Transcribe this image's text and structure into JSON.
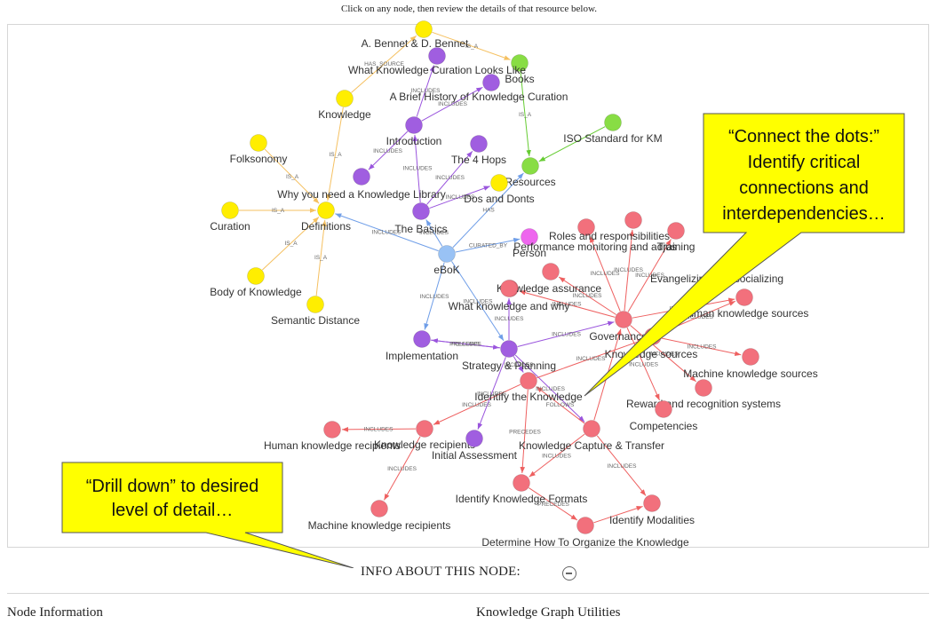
{
  "instruction": "Click on any node, then review the details of that resource below.",
  "colors": {
    "definition": "#ffee00",
    "content": "#a05ee0",
    "resource": "#88dd44",
    "governance": "#f2707c",
    "root": "#99c2f5",
    "person": "#ee66ee",
    "callout": "#ffff00"
  },
  "nodes": [
    {
      "id": "a-bennet",
      "label": "A. Bennet & D. Bennet",
      "type": "definition"
    },
    {
      "id": "books",
      "label": "Books",
      "type": "resource"
    },
    {
      "id": "what-kc-looks-like",
      "label": "What Knowledge Curation Looks Like",
      "type": "content"
    },
    {
      "id": "brief-history",
      "label": "A Brief History of Knowledge Curation",
      "type": "content"
    },
    {
      "id": "knowledge",
      "label": "Knowledge",
      "type": "definition"
    },
    {
      "id": "introduction",
      "label": "Introduction",
      "type": "content"
    },
    {
      "id": "iso-km",
      "label": "ISO Standard for KM",
      "type": "resource"
    },
    {
      "id": "folksonomy",
      "label": "Folksonomy",
      "type": "definition"
    },
    {
      "id": "the-4-hops",
      "label": "The 4 Hops",
      "type": "content"
    },
    {
      "id": "resources",
      "label": "Resources",
      "type": "resource"
    },
    {
      "id": "why-library",
      "label": "Why you need a Knowledge Library",
      "type": "content"
    },
    {
      "id": "dos-donts",
      "label": "Dos and Donts",
      "type": "definition"
    },
    {
      "id": "curation",
      "label": "Curation",
      "type": "definition"
    },
    {
      "id": "definitions",
      "label": "Definitions",
      "type": "definition"
    },
    {
      "id": "the-basics",
      "label": "The Basics",
      "type": "content"
    },
    {
      "id": "roles",
      "label": "Roles and responsibilities",
      "type": "governance"
    },
    {
      "id": "training",
      "label": "Training",
      "type": "governance"
    },
    {
      "id": "person",
      "label": "Person",
      "type": "person"
    },
    {
      "id": "perf-monitoring",
      "label": "Performance monitoring and adjus",
      "type": "governance"
    },
    {
      "id": "ebok",
      "label": "eBoK",
      "type": "root"
    },
    {
      "id": "evangelizing",
      "label": "Evangelizing and socializing",
      "type": "governance"
    },
    {
      "id": "body-of-knowledge",
      "label": "Body of Knowledge",
      "type": "definition"
    },
    {
      "id": "knowledge-assurance",
      "label": "Knowledge assurance",
      "type": "governance"
    },
    {
      "id": "what-knowledge-why",
      "label": "What knowledge and why",
      "type": "governance"
    },
    {
      "id": "human-sources",
      "label": "Human knowledge sources",
      "type": "governance"
    },
    {
      "id": "semantic-distance",
      "label": "Semantic Distance",
      "type": "definition"
    },
    {
      "id": "governance",
      "label": "Governance",
      "type": "governance"
    },
    {
      "id": "implementation",
      "label": "Implementation",
      "type": "content"
    },
    {
      "id": "knowledge-sources",
      "label": "Knowledge sources",
      "type": "governance"
    },
    {
      "id": "strategy-planning",
      "label": "Strategy & Planning",
      "type": "content"
    },
    {
      "id": "machine-sources",
      "label": "Machine knowledge sources",
      "type": "governance"
    },
    {
      "id": "identify-knowledge",
      "label": "Identify the Knowledge",
      "type": "governance"
    },
    {
      "id": "reward",
      "label": "Reward and recognition systems",
      "type": "governance"
    },
    {
      "id": "competencies",
      "label": "Competencies",
      "type": "governance"
    },
    {
      "id": "human-recipients",
      "label": "Human knowledge recipients",
      "type": "governance"
    },
    {
      "id": "knowledge-recipients",
      "label": "Knowledge recipients",
      "type": "governance"
    },
    {
      "id": "initial-assessment",
      "label": "Initial Assessment",
      "type": "content"
    },
    {
      "id": "capture-transfer",
      "label": "Knowledge Capture & Transfer",
      "type": "governance"
    },
    {
      "id": "identify-formats",
      "label": "Identify Knowledge Formats",
      "type": "governance"
    },
    {
      "id": "machine-recipients",
      "label": "Machine knowledge recipients",
      "type": "governance"
    },
    {
      "id": "identify-modalities",
      "label": "Identify Modalities",
      "type": "governance"
    },
    {
      "id": "determine-organize",
      "label": "Determine How To Organize the Knowledge",
      "type": "governance"
    }
  ],
  "edges": [
    {
      "from": "knowledge",
      "to": "a-bennet",
      "label": "HAS_SOURCE"
    },
    {
      "from": "a-bennet",
      "to": "books",
      "label": "IS_A"
    },
    {
      "from": "books",
      "to": "resources",
      "label": "IS_A"
    },
    {
      "from": "iso-km",
      "to": "resources",
      "label": ""
    },
    {
      "from": "introduction",
      "to": "what-kc-looks-like",
      "label": "INCLUDES"
    },
    {
      "from": "introduction",
      "to": "brief-history",
      "label": "INCLUDES"
    },
    {
      "from": "introduction",
      "to": "why-library",
      "label": "INCLUDES"
    },
    {
      "from": "the-basics",
      "to": "introduction",
      "label": "INCLUDES"
    },
    {
      "from": "the-basics",
      "to": "the-4-hops",
      "label": "INCLUDES"
    },
    {
      "from": "the-basics",
      "to": "dos-donts",
      "label": "INCLUDES"
    },
    {
      "from": "ebok",
      "to": "the-basics",
      "label": "INCLUDES"
    },
    {
      "from": "ebok",
      "to": "resources",
      "label": "HAS"
    },
    {
      "from": "ebok",
      "to": "definitions",
      "label": "INCLUDES"
    },
    {
      "from": "ebok",
      "to": "person",
      "label": "CURATED_BY"
    },
    {
      "from": "ebok",
      "to": "implementation",
      "label": "INCLUDES"
    },
    {
      "from": "ebok",
      "to": "strategy-planning",
      "label": "INCLUDES"
    },
    {
      "from": "knowledge",
      "to": "definitions",
      "label": "IS_A"
    },
    {
      "from": "folksonomy",
      "to": "definitions",
      "label": "IS_A"
    },
    {
      "from": "curation",
      "to": "definitions",
      "label": "IS_A"
    },
    {
      "from": "body-of-knowledge",
      "to": "definitions",
      "label": "IS_A"
    },
    {
      "from": "semantic-distance",
      "to": "definitions",
      "label": "IS_A"
    },
    {
      "from": "strategy-planning",
      "to": "implementation",
      "label": "PRECEDES"
    },
    {
      "from": "implementation",
      "to": "strategy-planning",
      "label": "FOLLOWS"
    },
    {
      "from": "strategy-planning",
      "to": "governance",
      "label": "INCLUDES"
    },
    {
      "from": "strategy-planning",
      "to": "what-knowledge-why",
      "label": "INCLUDES"
    },
    {
      "from": "strategy-planning",
      "to": "identify-knowledge",
      "label": "INCLUDES"
    },
    {
      "from": "strategy-planning",
      "to": "initial-assessment",
      "label": "INCLUDES"
    },
    {
      "from": "strategy-planning",
      "to": "capture-transfer",
      "label": "INCLUDES"
    },
    {
      "from": "governance",
      "to": "roles",
      "label": "INCLUDES"
    },
    {
      "from": "governance",
      "to": "training",
      "label": "INCLUDES"
    },
    {
      "from": "governance",
      "to": "perf-monitoring",
      "label": "INCLUDES"
    },
    {
      "from": "governance",
      "to": "evangelizing",
      "label": "INCLUDES"
    },
    {
      "from": "governance",
      "to": "knowledge-assurance",
      "label": "INCLUDES"
    },
    {
      "from": "governance",
      "to": "competencies",
      "label": "INCLUDES"
    },
    {
      "from": "governance",
      "to": "reward",
      "label": "INCLUDES"
    },
    {
      "from": "governance",
      "to": "human-sources",
      "label": "INCLUDES"
    },
    {
      "from": "knowledge-sources",
      "to": "human-sources",
      "label": "INCLUDES"
    },
    {
      "from": "knowledge-sources",
      "to": "machine-sources",
      "label": "INCLUDES"
    },
    {
      "from": "identify-knowledge",
      "to": "knowledge-sources",
      "label": "INCLUDES"
    },
    {
      "from": "identify-knowledge",
      "to": "knowledge-recipients",
      "label": "INCLUDES"
    },
    {
      "from": "identify-knowledge",
      "to": "identify-formats",
      "label": "PRECEDES"
    },
    {
      "from": "capture-transfer",
      "to": "identify-knowledge",
      "label": "FOLLOWS"
    },
    {
      "from": "knowledge-recipients",
      "to": "human-recipients",
      "label": "INCLUDES"
    },
    {
      "from": "knowledge-recipients",
      "to": "machine-recipients",
      "label": "INCLUDES"
    },
    {
      "from": "capture-transfer",
      "to": "identify-formats",
      "label": "INCLUDES"
    },
    {
      "from": "capture-transfer",
      "to": "identify-modalities",
      "label": "INCLUDES"
    },
    {
      "from": "identify-formats",
      "to": "determine-organize",
      "label": "PRECEDES"
    },
    {
      "from": "determine-organize",
      "to": "identify-modalities",
      "label": ""
    },
    {
      "from": "capture-transfer",
      "to": "governance",
      "label": ""
    }
  ],
  "callouts": [
    {
      "id": "connect-dots",
      "lines": [
        "“Connect the dots:”",
        "Identify critical",
        "connections and",
        "interdependencies…"
      ]
    },
    {
      "id": "drill-down",
      "lines": [
        "“Drill down” to desired",
        "level of detail…"
      ]
    }
  ],
  "info_title": "INFO ABOUT THIS NODE:",
  "panel_left": "Node Information",
  "panel_right": "Knowledge Graph Utilities"
}
